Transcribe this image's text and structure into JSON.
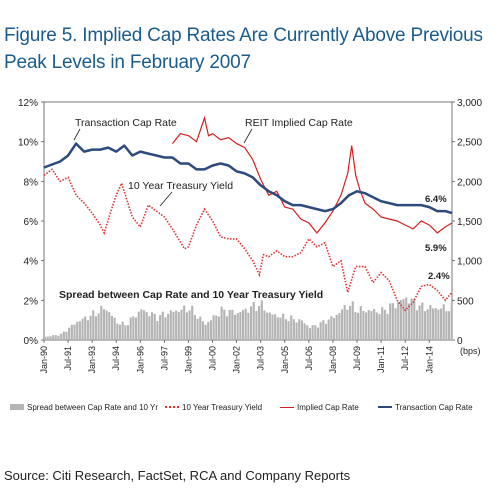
{
  "title_line1": "Figure 5. Implied Cap Rates Are Currently Above Previous",
  "title_line2": "Peak Levels in February 2007",
  "source": "Source: Citi Research, FactSet, RCA and Company Reports",
  "colors": {
    "title": "#1a5c8c",
    "transaction": "#2c4a7c",
    "implied": "#d42020",
    "treasury": "#e03030",
    "spread": "#b4b4b4"
  },
  "chart_data": {
    "type": "line",
    "x_tick_labels": [
      "Jan-90",
      "Jul-91",
      "Jan-93",
      "Jul-94",
      "Jan-96",
      "Jul-97",
      "Jan-99",
      "Jul-00",
      "Jan-02",
      "Jul-03",
      "Jan-05",
      "Jul-06",
      "Jan-08",
      "Jul-09",
      "Jan-11",
      "Jul-12",
      "Jan-14"
    ],
    "x_range": [
      "1990-01",
      "2015-06"
    ],
    "y_left": {
      "ticks": [
        "0%",
        "2%",
        "4%",
        "6%",
        "8%",
        "10%",
        "12%"
      ],
      "range": [
        0,
        12
      ]
    },
    "y_right": {
      "ticks": [
        "0",
        "500",
        "1,000",
        "1,500",
        "2,000",
        "2,500",
        "3,000"
      ],
      "range": [
        0,
        3000
      ],
      "unit_label": "(bps)"
    },
    "annotations": {
      "transaction": "Transaction Cap Rate",
      "implied": "REIT Implied Cap Rate",
      "treasury": "10 Year Treasury Yield",
      "spread": "Spread between Cap Rate and 10 Year Treasury Yield",
      "val_transaction": "6.4%",
      "val_implied": "5.9%",
      "val_treasury": "2.4%"
    },
    "legend": [
      "Spread between Cap Rate and 10 Yr",
      "10 Year Treasury Yield",
      "Implied Cap Rate",
      "Transaction Cap Rate"
    ],
    "series": [
      {
        "name": "Transaction Cap Rate",
        "axis": "left",
        "points": [
          [
            "1990-01",
            8.7
          ],
          [
            "1991-01",
            9.0
          ],
          [
            "1991-07",
            9.3
          ],
          [
            "1992-01",
            9.9
          ],
          [
            "1992-07",
            9.5
          ],
          [
            "1993-01",
            9.6
          ],
          [
            "1993-07",
            9.6
          ],
          [
            "1994-01",
            9.7
          ],
          [
            "1994-07",
            9.5
          ],
          [
            "1995-01",
            9.8
          ],
          [
            "1995-07",
            9.3
          ],
          [
            "1996-01",
            9.5
          ],
          [
            "1996-07",
            9.4
          ],
          [
            "1997-01",
            9.3
          ],
          [
            "1997-07",
            9.2
          ],
          [
            "1998-01",
            9.2
          ],
          [
            "1998-07",
            8.9
          ],
          [
            "1999-01",
            8.9
          ],
          [
            "1999-07",
            8.6
          ],
          [
            "2000-01",
            8.6
          ],
          [
            "2000-07",
            8.8
          ],
          [
            "2001-01",
            8.9
          ],
          [
            "2001-07",
            8.8
          ],
          [
            "2002-01",
            8.5
          ],
          [
            "2002-07",
            8.4
          ],
          [
            "2003-01",
            8.2
          ],
          [
            "2003-07",
            7.8
          ],
          [
            "2004-01",
            7.5
          ],
          [
            "2004-07",
            7.3
          ],
          [
            "2005-01",
            7.0
          ],
          [
            "2005-07",
            6.8
          ],
          [
            "2006-01",
            6.8
          ],
          [
            "2006-07",
            6.7
          ],
          [
            "2007-01",
            6.6
          ],
          [
            "2007-07",
            6.5
          ],
          [
            "2008-01",
            6.6
          ],
          [
            "2008-07",
            6.9
          ],
          [
            "2009-01",
            7.3
          ],
          [
            "2009-07",
            7.5
          ],
          [
            "2010-01",
            7.4
          ],
          [
            "2010-07",
            7.2
          ],
          [
            "2011-01",
            7.0
          ],
          [
            "2011-07",
            6.9
          ],
          [
            "2012-01",
            6.8
          ],
          [
            "2012-07",
            6.8
          ],
          [
            "2013-01",
            6.8
          ],
          [
            "2013-07",
            6.8
          ],
          [
            "2014-01",
            6.7
          ],
          [
            "2014-07",
            6.5
          ],
          [
            "2015-01",
            6.5
          ],
          [
            "2015-06",
            6.4
          ]
        ]
      },
      {
        "name": "REIT Implied Cap Rate",
        "axis": "left",
        "points": [
          [
            "1998-01",
            9.9
          ],
          [
            "1998-07",
            10.4
          ],
          [
            "1999-01",
            10.3
          ],
          [
            "1999-07",
            10.0
          ],
          [
            "2000-01",
            11.2
          ],
          [
            "2000-04",
            10.3
          ],
          [
            "2000-07",
            10.4
          ],
          [
            "2001-01",
            10.1
          ],
          [
            "2001-07",
            10.2
          ],
          [
            "2002-01",
            9.9
          ],
          [
            "2002-07",
            9.7
          ],
          [
            "2003-01",
            9.1
          ],
          [
            "2003-07",
            8.1
          ],
          [
            "2004-01",
            7.3
          ],
          [
            "2004-07",
            7.5
          ],
          [
            "2005-01",
            6.7
          ],
          [
            "2005-07",
            6.6
          ],
          [
            "2006-01",
            6.1
          ],
          [
            "2006-07",
            5.9
          ],
          [
            "2007-01",
            5.4
          ],
          [
            "2007-07",
            5.9
          ],
          [
            "2008-01",
            6.5
          ],
          [
            "2008-07",
            7.3
          ],
          [
            "2008-12",
            8.4
          ],
          [
            "2009-03",
            9.8
          ],
          [
            "2009-06",
            8.3
          ],
          [
            "2009-09",
            7.6
          ],
          [
            "2010-01",
            6.9
          ],
          [
            "2010-07",
            6.6
          ],
          [
            "2011-01",
            6.2
          ],
          [
            "2011-07",
            6.1
          ],
          [
            "2012-01",
            6.0
          ],
          [
            "2012-07",
            5.8
          ],
          [
            "2013-01",
            5.6
          ],
          [
            "2013-07",
            6.0
          ],
          [
            "2014-01",
            5.8
          ],
          [
            "2014-07",
            5.4
          ],
          [
            "2015-01",
            5.7
          ],
          [
            "2015-06",
            5.9
          ]
        ]
      },
      {
        "name": "10 Year Treasury Yield",
        "axis": "left",
        "points": [
          [
            "1990-01",
            8.3
          ],
          [
            "1990-07",
            8.6
          ],
          [
            "1991-01",
            8.0
          ],
          [
            "1991-07",
            8.2
          ],
          [
            "1992-01",
            7.3
          ],
          [
            "1992-07",
            6.9
          ],
          [
            "1993-01",
            6.4
          ],
          [
            "1993-07",
            5.8
          ],
          [
            "1993-10",
            5.4
          ],
          [
            "1994-03",
            6.5
          ],
          [
            "1994-07",
            7.3
          ],
          [
            "1994-11",
            7.9
          ],
          [
            "1995-07",
            6.2
          ],
          [
            "1996-01",
            5.7
          ],
          [
            "1996-07",
            6.8
          ],
          [
            "1997-01",
            6.5
          ],
          [
            "1997-07",
            6.2
          ],
          [
            "1998-01",
            5.6
          ],
          [
            "1998-10",
            4.6
          ],
          [
            "1999-01",
            4.7
          ],
          [
            "1999-07",
            5.8
          ],
          [
            "2000-01",
            6.6
          ],
          [
            "2000-07",
            6.0
          ],
          [
            "2001-01",
            5.2
          ],
          [
            "2001-07",
            5.1
          ],
          [
            "2002-01",
            5.1
          ],
          [
            "2002-07",
            4.6
          ],
          [
            "2003-01",
            4.0
          ],
          [
            "2003-06",
            3.3
          ],
          [
            "2003-09",
            4.3
          ],
          [
            "2004-01",
            4.2
          ],
          [
            "2004-07",
            4.5
          ],
          [
            "2005-01",
            4.2
          ],
          [
            "2005-07",
            4.2
          ],
          [
            "2006-01",
            4.4
          ],
          [
            "2006-07",
            5.1
          ],
          [
            "2007-01",
            4.7
          ],
          [
            "2007-07",
            4.9
          ],
          [
            "2008-01",
            3.7
          ],
          [
            "2008-07",
            4.0
          ],
          [
            "2008-12",
            2.4
          ],
          [
            "2009-06",
            3.7
          ],
          [
            "2010-01",
            3.7
          ],
          [
            "2010-07",
            2.9
          ],
          [
            "2011-01",
            3.4
          ],
          [
            "2011-07",
            3.0
          ],
          [
            "2012-01",
            2.0
          ],
          [
            "2012-07",
            1.5
          ],
          [
            "2013-01",
            1.9
          ],
          [
            "2013-07",
            2.7
          ],
          [
            "2014-01",
            2.8
          ],
          [
            "2014-07",
            2.5
          ],
          [
            "2015-01",
            2.0
          ],
          [
            "2015-06",
            2.4
          ]
        ]
      },
      {
        "name": "Spread between Cap Rate and 10 Year Treasury Yield",
        "axis": "right",
        "points": [
          [
            "1990-01",
            40
          ],
          [
            "1991-01",
            70
          ],
          [
            "1992-01",
            230
          ],
          [
            "1993-01",
            320
          ],
          [
            "1993-10",
            410
          ],
          [
            "1994-07",
            220
          ],
          [
            "1995-01",
            190
          ],
          [
            "1996-01",
            380
          ],
          [
            "1997-01",
            290
          ],
          [
            "1998-01",
            360
          ],
          [
            "1999-01",
            400
          ],
          [
            "2000-01",
            200
          ],
          [
            "2001-01",
            370
          ],
          [
            "2002-01",
            340
          ],
          [
            "2003-01",
            420
          ],
          [
            "2003-06",
            450
          ],
          [
            "2004-01",
            330
          ],
          [
            "2005-01",
            280
          ],
          [
            "2006-01",
            240
          ],
          [
            "2006-07",
            160
          ],
          [
            "2007-01",
            190
          ],
          [
            "2008-01",
            290
          ],
          [
            "2008-12",
            450
          ],
          [
            "2009-06",
            380
          ],
          [
            "2010-01",
            370
          ],
          [
            "2011-01",
            360
          ],
          [
            "2012-01",
            470
          ],
          [
            "2012-07",
            530
          ],
          [
            "2013-07",
            410
          ],
          [
            "2014-07",
            400
          ],
          [
            "2015-06",
            400
          ]
        ]
      }
    ]
  }
}
